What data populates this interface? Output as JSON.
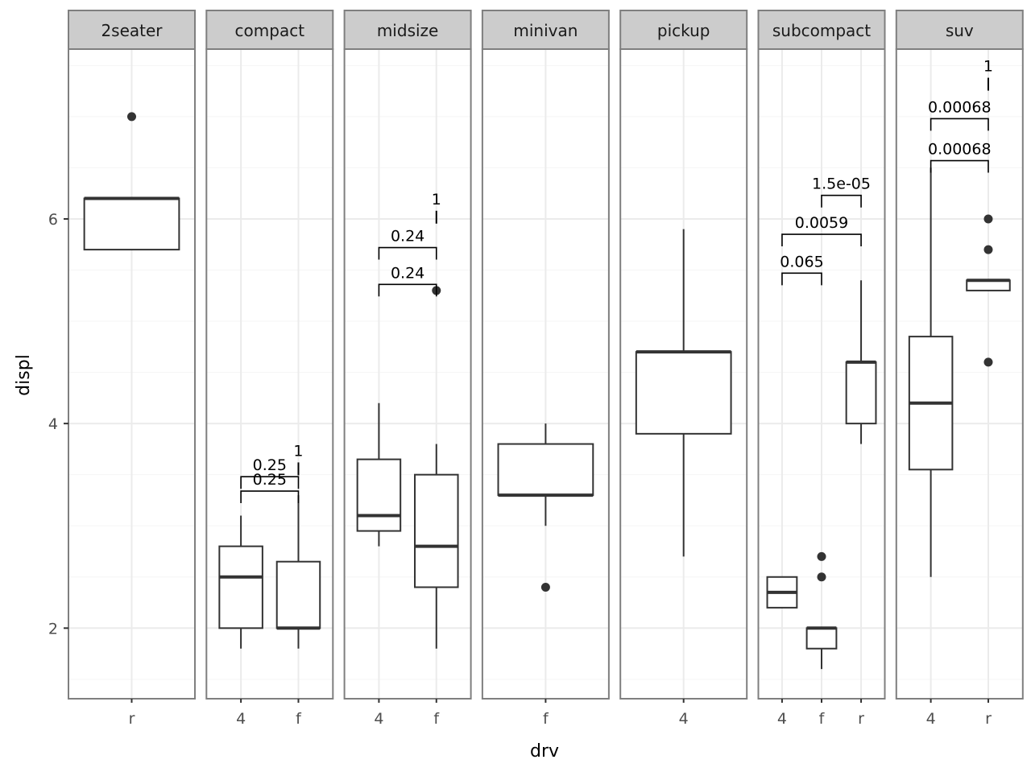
{
  "chart_data": {
    "type": "boxplot",
    "xlabel": "drv",
    "ylabel": "displ",
    "ylim": [
      1.31,
      7.66
    ],
    "y_ticks": [
      2,
      4,
      6
    ],
    "grid": true,
    "colors": {
      "strip": "#cccccc",
      "border": "#7f7f7f",
      "grid": "#ebebeb",
      "box": "#333333",
      "text": "#4d4d4d"
    },
    "facets": [
      {
        "label": "2seater",
        "categories": [
          "r"
        ],
        "boxes": [
          {
            "x": "r",
            "lower": 5.7,
            "median": 6.2,
            "upper": 6.2,
            "ymin": 5.7,
            "ymax": 6.2,
            "outliers": [
              7.0
            ]
          }
        ],
        "brackets": []
      },
      {
        "label": "compact",
        "categories": [
          "4",
          "f"
        ],
        "boxes": [
          {
            "x": "4",
            "lower": 2.0,
            "median": 2.5,
            "upper": 2.8,
            "ymin": 1.8,
            "ymax": 3.1,
            "outliers": []
          },
          {
            "x": "f",
            "lower": 2.0,
            "median": 2.0,
            "upper": 2.65,
            "ymin": 1.8,
            "ymax": 3.3,
            "outliers": []
          }
        ],
        "brackets": [
          {
            "from": "4",
            "to": "f",
            "y": 3.34,
            "label": "0.25"
          },
          {
            "from": "4",
            "to": "f",
            "y": 3.48,
            "label": "0.25"
          },
          {
            "from": "f",
            "to": "f",
            "y": 3.62,
            "label": "1"
          }
        ]
      },
      {
        "label": "midsize",
        "categories": [
          "4",
          "f"
        ],
        "boxes": [
          {
            "x": "4",
            "lower": 2.95,
            "median": 3.1,
            "upper": 3.65,
            "ymin": 2.8,
            "ymax": 4.2,
            "outliers": []
          },
          {
            "x": "f",
            "lower": 2.4,
            "median": 2.8,
            "upper": 3.5,
            "ymin": 1.8,
            "ymax": 3.8,
            "outliers": [
              5.3
            ]
          }
        ],
        "brackets": [
          {
            "from": "4",
            "to": "f",
            "y": 5.36,
            "label": "0.24"
          },
          {
            "from": "4",
            "to": "f",
            "y": 5.72,
            "label": "0.24"
          },
          {
            "from": "f",
            "to": "f",
            "y": 6.08,
            "label": "1"
          }
        ]
      },
      {
        "label": "minivan",
        "categories": [
          "f"
        ],
        "boxes": [
          {
            "x": "f",
            "lower": 3.3,
            "median": 3.3,
            "upper": 3.8,
            "ymin": 3.0,
            "ymax": 4.0,
            "outliers": [
              2.4
            ]
          }
        ],
        "brackets": []
      },
      {
        "label": "pickup",
        "categories": [
          "4"
        ],
        "boxes": [
          {
            "x": "4",
            "lower": 3.9,
            "median": 4.7,
            "upper": 4.7,
            "ymin": 2.7,
            "ymax": 5.9,
            "outliers": []
          }
        ],
        "brackets": []
      },
      {
        "label": "subcompact",
        "categories": [
          "4",
          "f",
          "r"
        ],
        "boxes": [
          {
            "x": "4",
            "lower": 2.2,
            "median": 2.35,
            "upper": 2.5,
            "ymin": 2.2,
            "ymax": 2.5,
            "outliers": []
          },
          {
            "x": "f",
            "lower": 1.8,
            "median": 2.0,
            "upper": 2.0,
            "ymin": 1.6,
            "ymax": 2.0,
            "outliers": [
              2.5,
              2.7
            ]
          },
          {
            "x": "r",
            "lower": 4.0,
            "median": 4.6,
            "upper": 4.6,
            "ymin": 3.8,
            "ymax": 5.4,
            "outliers": []
          }
        ],
        "brackets": [
          {
            "from": "4",
            "to": "f",
            "y": 5.47,
            "label": "0.065"
          },
          {
            "from": "4",
            "to": "r",
            "y": 5.85,
            "label": "0.0059"
          },
          {
            "from": "f",
            "to": "r",
            "y": 6.23,
            "label": "1.5e-05"
          }
        ]
      },
      {
        "label": "suv",
        "categories": [
          "4",
          "r"
        ],
        "boxes": [
          {
            "x": "4",
            "lower": 3.55,
            "median": 4.2,
            "upper": 4.85,
            "ymin": 2.5,
            "ymax": 6.5,
            "outliers": []
          },
          {
            "x": "r",
            "lower": 5.3,
            "median": 5.4,
            "upper": 5.4,
            "ymin": 5.3,
            "ymax": 5.4,
            "outliers": [
              4.6,
              5.7,
              6.0
            ]
          }
        ],
        "brackets": [
          {
            "from": "4",
            "to": "r",
            "y": 6.57,
            "label": "0.00068"
          },
          {
            "from": "4",
            "to": "r",
            "y": 6.98,
            "label": "0.00068"
          },
          {
            "from": "r",
            "to": "r",
            "y": 7.38,
            "label": "1"
          }
        ]
      }
    ]
  }
}
